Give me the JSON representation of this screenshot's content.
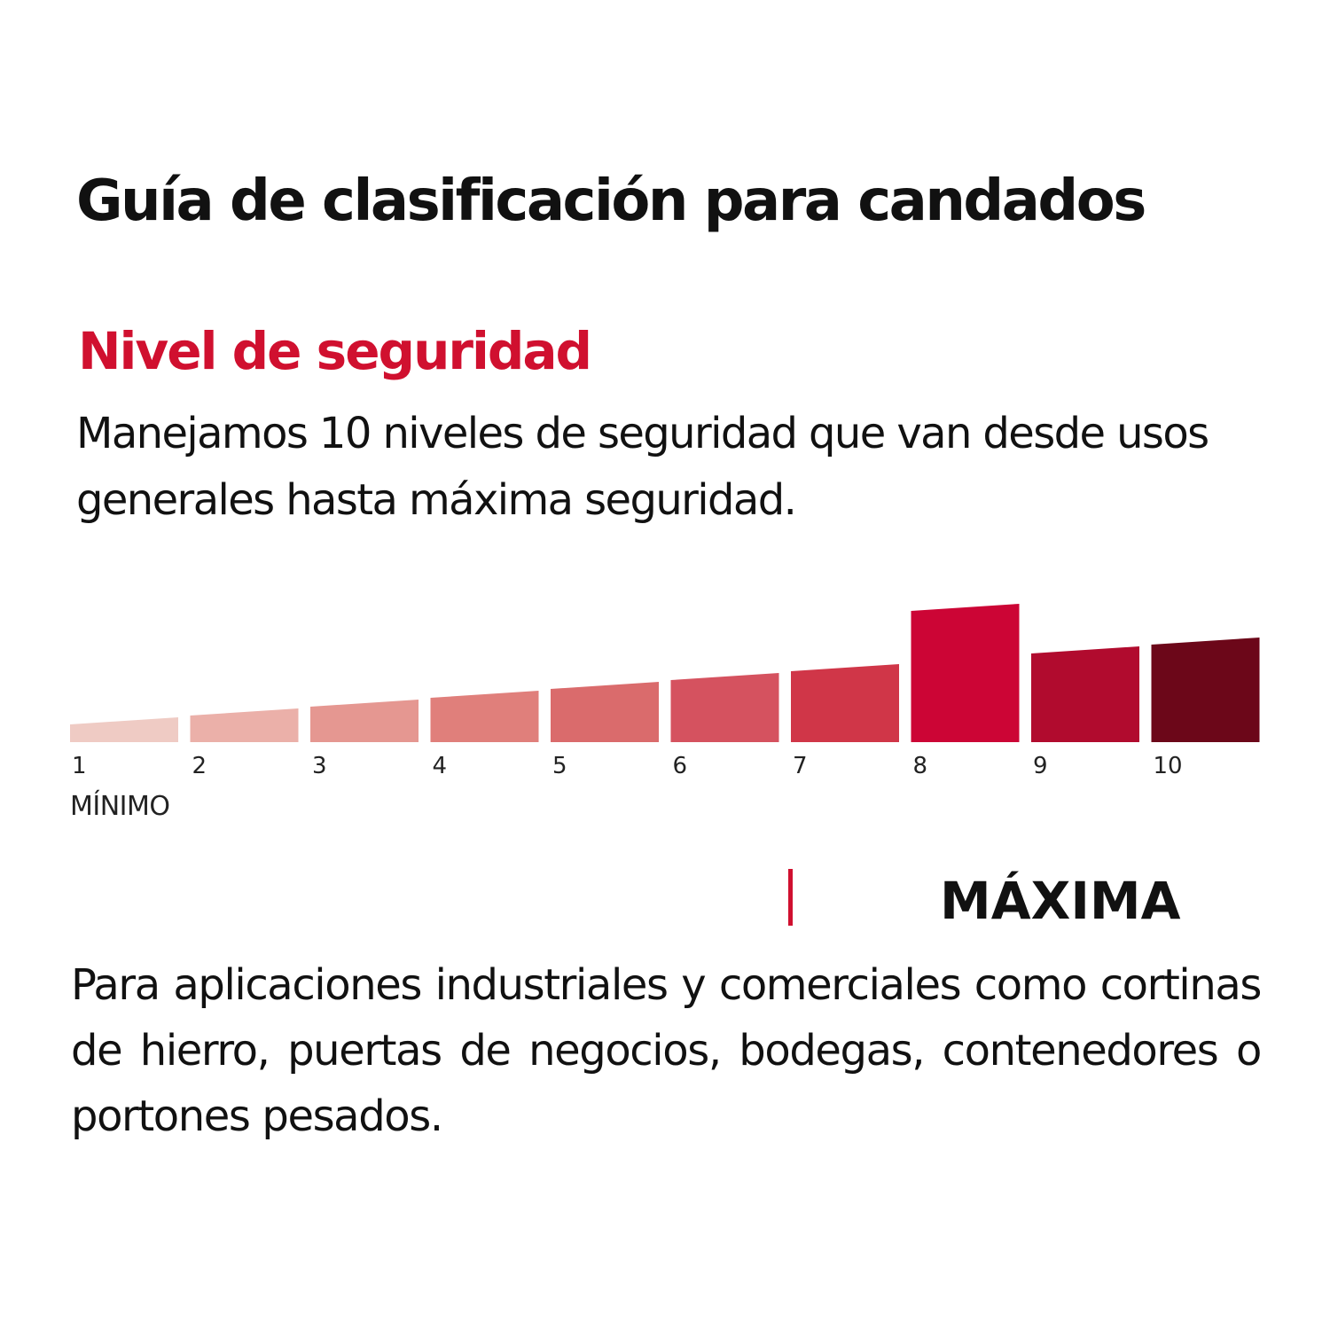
{
  "title": "Guía de clasificación para candados",
  "section_title": "Nivel de seguridad",
  "intro_text": "Manejamos 10 niveles de seguridad que van desde usos generales hasta máxima seguridad.",
  "chart_data": {
    "type": "bar",
    "categories": [
      "1",
      "2",
      "3",
      "4",
      "5",
      "6",
      "7",
      "8",
      "9",
      "10"
    ],
    "values": [
      1,
      2,
      3,
      4,
      5,
      6,
      7,
      8,
      9,
      10
    ],
    "min_label": "MÍNIMO",
    "highlighted_level": "8",
    "colors": [
      "#efcbc4",
      "#ebb0a9",
      "#e59791",
      "#e07f7b",
      "#da6b6c",
      "#d5525f",
      "#d03648",
      "#cc0535",
      "#b10b2e",
      "#6c0719"
    ]
  },
  "level_label": "MÁXIMA",
  "description": "Para aplicaciones industriales y comerciales como cortinas de hierro, puertas de negocios, bodegas, contenedores o portones pesados."
}
